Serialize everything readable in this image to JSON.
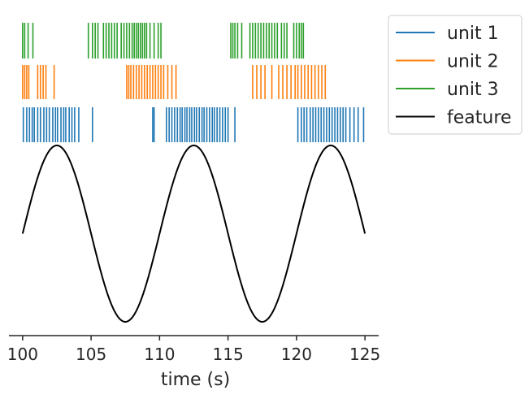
{
  "chart_data": {
    "type": "line",
    "title": "",
    "xlabel": "time (s)",
    "ylabel": "",
    "xlim": [
      99,
      126
    ],
    "xticks": [
      100,
      105,
      110,
      115,
      120,
      125
    ],
    "x_tick_labels": [
      "100",
      "105",
      "110",
      "115",
      "120",
      "125"
    ],
    "grid": false,
    "legend_position": "outside top-right",
    "legend": [
      "unit 1",
      "unit 2",
      "unit 3",
      "feature"
    ],
    "feature": {
      "name": "feature",
      "color": "#000000",
      "period_s": 10,
      "peak_times_s": [
        102.5,
        112.5,
        122.5
      ],
      "trough_times_s": [
        107.5,
        117.5
      ],
      "x_range": [
        100,
        125
      ]
    },
    "series": [
      {
        "name": "unit 1",
        "color": "#1f77b4",
        "spike_times": [
          100.05,
          100.3,
          100.5,
          100.7,
          100.85,
          101.1,
          101.3,
          101.55,
          101.75,
          101.95,
          102.2,
          102.4,
          102.55,
          102.8,
          103.0,
          103.15,
          103.4,
          103.6,
          103.8,
          104.1,
          105.1,
          109.5,
          109.6,
          110.5,
          110.7,
          110.9,
          111.1,
          111.3,
          111.5,
          111.65,
          111.85,
          112.0,
          112.2,
          112.35,
          112.55,
          112.7,
          112.9,
          113.1,
          113.25,
          113.45,
          113.65,
          113.85,
          114.0,
          114.2,
          114.4,
          114.6,
          114.8,
          115.0,
          115.5,
          120.1,
          120.35,
          120.55,
          120.75,
          121.0,
          121.2,
          121.4,
          121.6,
          121.8,
          122.0,
          122.2,
          122.4,
          122.6,
          122.8,
          123.0,
          123.2,
          123.4,
          123.6,
          123.9,
          124.2,
          124.5,
          124.9
        ]
      },
      {
        "name": "unit 2",
        "color": "#ff7f0e",
        "spike_times": [
          100.0,
          100.15,
          100.3,
          100.45,
          101.1,
          101.3,
          101.5,
          101.7,
          102.3,
          107.6,
          107.75,
          107.9,
          108.1,
          108.3,
          108.5,
          108.7,
          108.9,
          109.1,
          109.3,
          109.5,
          109.7,
          109.9,
          110.1,
          110.3,
          110.6,
          110.9,
          111.2,
          116.8,
          117.1,
          117.4,
          117.7,
          118.2,
          118.7,
          119.0,
          119.3,
          119.6,
          119.9,
          120.1,
          120.35,
          120.6,
          120.85,
          121.1,
          121.35,
          121.6,
          121.85,
          122.1
        ]
      },
      {
        "name": "unit 3",
        "color": "#2ca02c",
        "spike_times": [
          100.0,
          100.15,
          100.4,
          100.75,
          104.8,
          105.1,
          105.3,
          105.5,
          105.9,
          106.1,
          106.3,
          106.5,
          106.7,
          106.9,
          107.2,
          107.4,
          107.6,
          107.8,
          108.0,
          108.15,
          108.3,
          108.45,
          108.6,
          108.75,
          108.9,
          109.05,
          109.3,
          109.6,
          109.9,
          110.1,
          115.2,
          115.35,
          115.5,
          115.7,
          116.0,
          116.6,
          116.8,
          117.0,
          117.2,
          117.4,
          117.6,
          117.8,
          118.0,
          118.2,
          118.4,
          118.6,
          118.9,
          119.1,
          119.3,
          119.8,
          120.0,
          120.2,
          120.35,
          120.5
        ]
      }
    ]
  }
}
